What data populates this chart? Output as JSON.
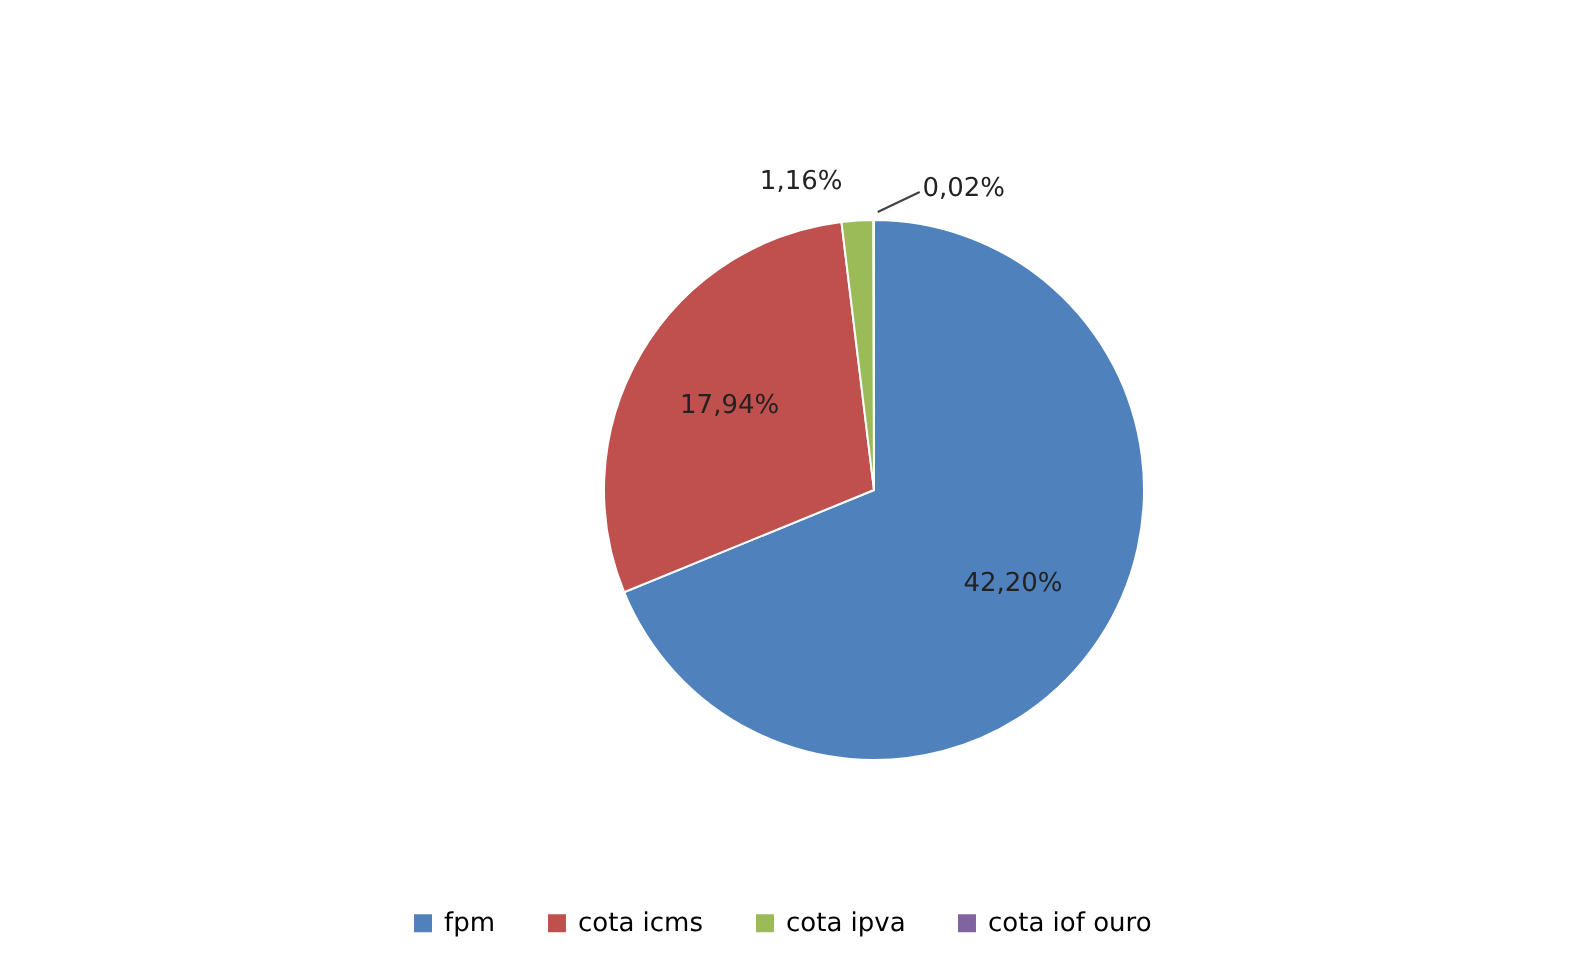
{
  "chart_data": {
    "type": "pie",
    "categories": [
      "fpm",
      "cota icms",
      "cota ipva",
      "cota iof ouro"
    ],
    "values": [
      42.2,
      17.94,
      1.16,
      0.02
    ],
    "colors": [
      "#4f81bd",
      "#c0504d",
      "#9bbb59",
      "#8064a2"
    ],
    "value_labels": [
      "42,20%",
      "17,94%",
      "1,16%",
      "0,02%"
    ],
    "legend": "bottom"
  }
}
